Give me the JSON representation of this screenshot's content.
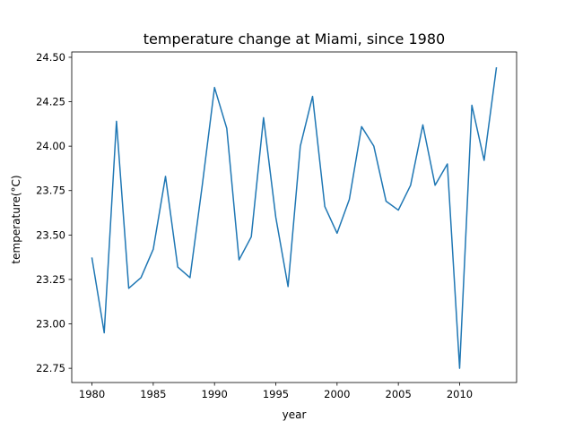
{
  "chart_data": {
    "type": "line",
    "title": "temperature change at Miami, since 1980",
    "xlabel": "year",
    "ylabel": "temperature(°C)",
    "xlim": [
      1978.35,
      2014.65
    ],
    "ylim": [
      22.67,
      24.53
    ],
    "xticks": [
      1980,
      1985,
      1990,
      1995,
      2000,
      2005,
      2010
    ],
    "yticks": [
      22.75,
      23.0,
      23.25,
      23.5,
      23.75,
      24.0,
      24.25,
      24.5
    ],
    "grid": false,
    "series": [
      {
        "color": "#1f77b4",
        "x": [
          1980,
          1981,
          1982,
          1983,
          1984,
          1985,
          1986,
          1987,
          1988,
          1989,
          1990,
          1991,
          1992,
          1993,
          1994,
          1995,
          1996,
          1997,
          1998,
          1999,
          2000,
          2001,
          2002,
          2003,
          2004,
          2005,
          2006,
          2007,
          2008,
          2009,
          2010,
          2011,
          2012,
          2013
        ],
        "values": [
          23.37,
          22.95,
          24.14,
          23.2,
          23.26,
          23.42,
          23.83,
          23.32,
          23.26,
          23.78,
          24.33,
          24.1,
          23.36,
          23.49,
          24.16,
          23.6,
          23.21,
          24.0,
          24.28,
          23.66,
          23.51,
          23.7,
          24.11,
          24.0,
          23.69,
          23.64,
          23.78,
          24.12,
          23.78,
          23.9,
          22.75,
          24.23,
          23.92,
          24.44
        ]
      }
    ]
  }
}
